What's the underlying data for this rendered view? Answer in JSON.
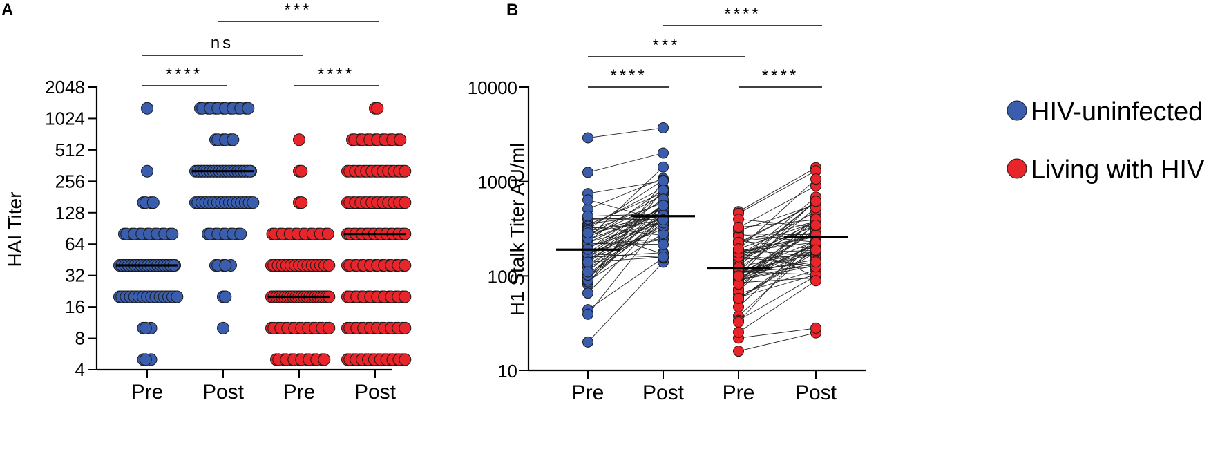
{
  "colors": {
    "hiv_uninfected": "#3A5DAE",
    "living_with_hiv": "#E8252B"
  },
  "legend": [
    {
      "label": "HIV-uninfected",
      "color": "#3A5DAE"
    },
    {
      "label": "Living with HIV",
      "color": "#E8252B"
    }
  ],
  "chart_data": [
    {
      "panel": "A",
      "type": "scatter",
      "ylabel": "HAI Titer",
      "yscale": "log2",
      "ylim": [
        4,
        2048
      ],
      "yticks": [
        4,
        8,
        16,
        32,
        64,
        128,
        256,
        512,
        1024,
        2048
      ],
      "ytick_labels": [
        "4",
        "8",
        "16",
        "32",
        "64",
        "128",
        "256",
        "512",
        "1024",
        "2048"
      ],
      "categories": [
        "Pre",
        "Post",
        "Pre",
        "Post"
      ],
      "groups": [
        {
          "name": "HIV-uninfected Pre",
          "color": "#3A5DAE",
          "median": 40,
          "counts": {
            "5": 3,
            "10": 3,
            "20": 28,
            "40": 35,
            "80": 14,
            "160": 4,
            "320": 1,
            "1280": 1
          }
        },
        {
          "name": "HIV-uninfected Post",
          "color": "#3A5DAE",
          "median": 320,
          "counts": {
            "10": 1,
            "20": 2,
            "40": 5,
            "80": 10,
            "160": 30,
            "320": 37,
            "640": 6,
            "1280": 14
          }
        },
        {
          "name": "Living with HIV Pre",
          "color": "#E8252B",
          "median": 20,
          "counts": {
            "5": 14,
            "10": 18,
            "20": 42,
            "40": 28,
            "80": 16,
            "160": 2,
            "320": 2,
            "640": 1
          }
        },
        {
          "name": "Living with HIV Post",
          "color": "#E8252B",
          "median": 80,
          "counts": {
            "5": 20,
            "10": 18,
            "20": 18,
            "40": 18,
            "80": 20,
            "160": 22,
            "320": 22,
            "640": 14,
            "1280": 2
          }
        }
      ],
      "significance": [
        {
          "from": 0,
          "to": 1,
          "label": "****",
          "level": 0
        },
        {
          "from": 2,
          "to": 3,
          "label": "****",
          "level": 0
        },
        {
          "from": 0,
          "to": 2,
          "label": "ns",
          "level": 1
        },
        {
          "from": 1,
          "to": 3,
          "label": "***",
          "level": 2
        }
      ]
    },
    {
      "panel": "B",
      "type": "scatter",
      "paired": true,
      "ylabel": "H1 Stalk Titer AU/ml",
      "yscale": "log10",
      "ylim": [
        10,
        10000
      ],
      "yticks": [
        10,
        100,
        1000,
        10000
      ],
      "ytick_labels": [
        "10",
        "100",
        "1000",
        "10000"
      ],
      "categories": [
        "Pre",
        "Post",
        "Pre",
        "Post"
      ],
      "groups": [
        {
          "name": "HIV-uninfected",
          "color": "#3A5DAE",
          "n": 60,
          "pre_range": [
            20,
            2900
          ],
          "post_range": [
            140,
            3700
          ],
          "pre_median": 190,
          "post_median": 430,
          "pre_extremes": [
            20,
            44,
            2900,
            1250
          ],
          "post_extremes": [
            140,
            155,
            3700,
            2000
          ]
        },
        {
          "name": "Living with HIV",
          "color": "#E8252B",
          "n": 70,
          "pre_range": [
            16,
            480
          ],
          "post_range": [
            25,
            1400
          ],
          "pre_median": 120,
          "post_median": 260,
          "pre_extremes": [
            16,
            22,
            480,
            460
          ],
          "post_extremes": [
            25,
            28,
            1400,
            1300
          ]
        }
      ],
      "significance": [
        {
          "from": 0,
          "to": 1,
          "label": "****",
          "level": 0
        },
        {
          "from": 2,
          "to": 3,
          "label": "****",
          "level": 0
        },
        {
          "from": 0,
          "to": 2,
          "label": "***",
          "level": 1
        },
        {
          "from": 1,
          "to": 3,
          "label": "****",
          "level": 2
        }
      ]
    }
  ]
}
